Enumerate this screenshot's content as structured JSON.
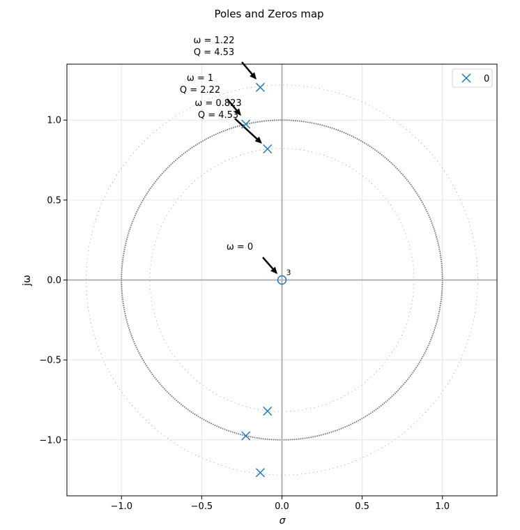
{
  "chart_data": {
    "type": "scatter",
    "title": "Poles and Zeros map",
    "xlabel": "σ",
    "ylabel": "jω",
    "xlim": [
      -1.34,
      1.34
    ],
    "ylim": [
      -1.35,
      1.35
    ],
    "x_ticks": [
      -1.0,
      -0.5,
      0.0,
      0.5,
      1.0
    ],
    "x_tick_labels": [
      "−1.0",
      "−0.5",
      "0.0",
      "0.5",
      "1.0"
    ],
    "y_ticks": [
      -1.0,
      -0.5,
      0.0,
      0.5,
      1.0
    ],
    "y_tick_labels": [
      "−1.0",
      "−0.5",
      "0.0",
      "0.5",
      "1.0"
    ],
    "grid": true,
    "legend": {
      "position": "top-right",
      "entries": [
        {
          "label": "0",
          "marker": "x",
          "color": "#1f77b4"
        }
      ]
    },
    "poles": [
      {
        "x": -0.135,
        "y": 1.205
      },
      {
        "x": -0.225,
        "y": 0.975
      },
      {
        "x": -0.09,
        "y": 0.82
      },
      {
        "x": -0.09,
        "y": -0.82
      },
      {
        "x": -0.225,
        "y": -0.975
      },
      {
        "x": -0.135,
        "y": -1.205
      }
    ],
    "zeros": [
      {
        "x": 0.0,
        "y": 0.0,
        "multiplicity_label": "3"
      }
    ],
    "omega_circles": [
      1.22,
      1.0,
      0.823
    ],
    "annotations": [
      {
        "lines": [
          "ω = 1.22",
          "Q = 4.53"
        ],
        "target": [
          -0.135,
          1.205
        ]
      },
      {
        "lines": [
          "ω =   1",
          "Q = 2.22"
        ],
        "target": [
          -0.225,
          0.975
        ]
      },
      {
        "lines": [
          "ω = 0.823",
          "Q = 4.53"
        ],
        "target": [
          -0.09,
          0.82
        ]
      },
      {
        "lines": [
          "ω =   0"
        ],
        "target": [
          0.0,
          0.0
        ]
      }
    ],
    "colors": {
      "marker": "#1f77b4",
      "axis_line": "#aaaaaa",
      "grid": "#e5e5e5",
      "circle": "#707070"
    }
  }
}
